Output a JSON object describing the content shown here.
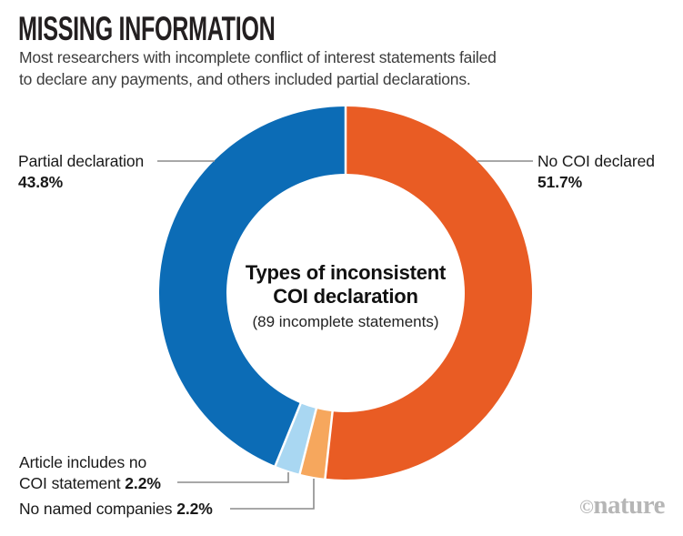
{
  "header": {
    "title": "MISSING INFORMATION",
    "subtitle_line1": "Most researchers with incomplete conflict of interest statements failed",
    "subtitle_line2": "to declare any payments, and others included partial declarations."
  },
  "chart_data": {
    "type": "pie",
    "subtype": "donut",
    "center_title_line1": "Types of inconsistent",
    "center_title_line2": "COI declaration",
    "center_subtitle": "(89 incomplete statements)",
    "total_statements": 89,
    "start_angle_deg": 0,
    "direction": "clockwise",
    "segments": [
      {
        "label": "No COI declared",
        "value": 51.7,
        "pct_label": "51.7%",
        "color": "#e95c24"
      },
      {
        "label": "No named companies",
        "value": 2.2,
        "pct_label": "2.2%",
        "color": "#f6a75d"
      },
      {
        "label": "Article includes no COI statement",
        "value": 2.2,
        "pct_label": "2.2%",
        "color": "#a9d7f2"
      },
      {
        "label": "Partial declaration",
        "value": 43.8,
        "pct_label": "43.8%",
        "color": "#0c6cb6"
      }
    ]
  },
  "callouts": {
    "partial": {
      "text": "Partial declaration",
      "pct": "43.8%"
    },
    "no_coi": {
      "text": "No COI declared",
      "pct": "51.7%"
    },
    "no_statement": {
      "line1": "Article includes no",
      "line2": "COI statement",
      "pct": "2.2%"
    },
    "no_companies": {
      "text": "No named companies",
      "pct": "2.2%"
    }
  },
  "watermark": {
    "symbol": "©",
    "brand": "nature"
  },
  "colors": {
    "background": "#ffffff",
    "title": "#231f20",
    "subtitle": "#3c3c3c",
    "label": "#191919",
    "leader_line": "#8c8c8c",
    "separator": "#ffffff",
    "watermark": "#b6b6b6"
  }
}
